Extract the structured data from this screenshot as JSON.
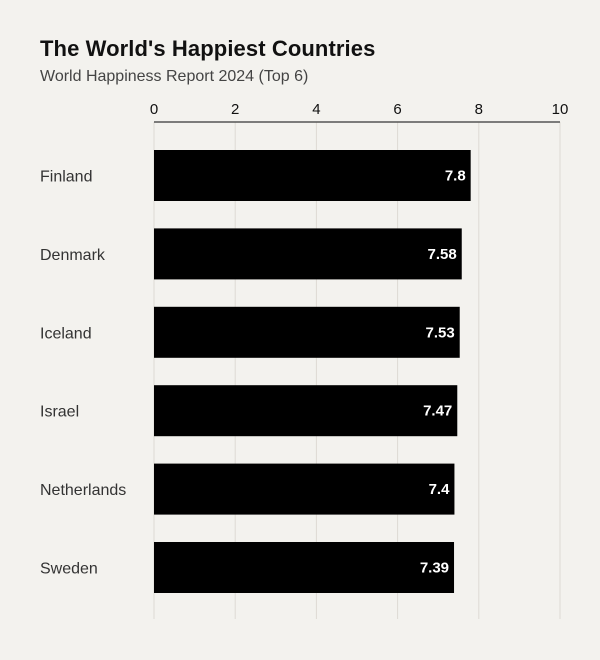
{
  "chart_data": {
    "type": "bar",
    "orientation": "horizontal",
    "title": "The World's Happiest Countries",
    "subtitle": "World Happiness Report 2024 (Top 6)",
    "categories": [
      "Finland",
      "Denmark",
      "Iceland",
      "Israel",
      "Netherlands",
      "Sweden"
    ],
    "values": [
      7.8,
      7.58,
      7.53,
      7.47,
      7.4,
      7.39
    ],
    "xlim": [
      0,
      10
    ],
    "xticks": [
      0,
      2,
      4,
      6,
      8,
      10
    ],
    "xlabel": "",
    "ylabel": "",
    "axis_position": "top",
    "grid": true,
    "legend": "none",
    "bar_color": "#000000",
    "value_label_color": "#ffffff",
    "background": "#f3f2ee",
    "grid_color": "#dddad4",
    "axis_color": "#555555"
  }
}
